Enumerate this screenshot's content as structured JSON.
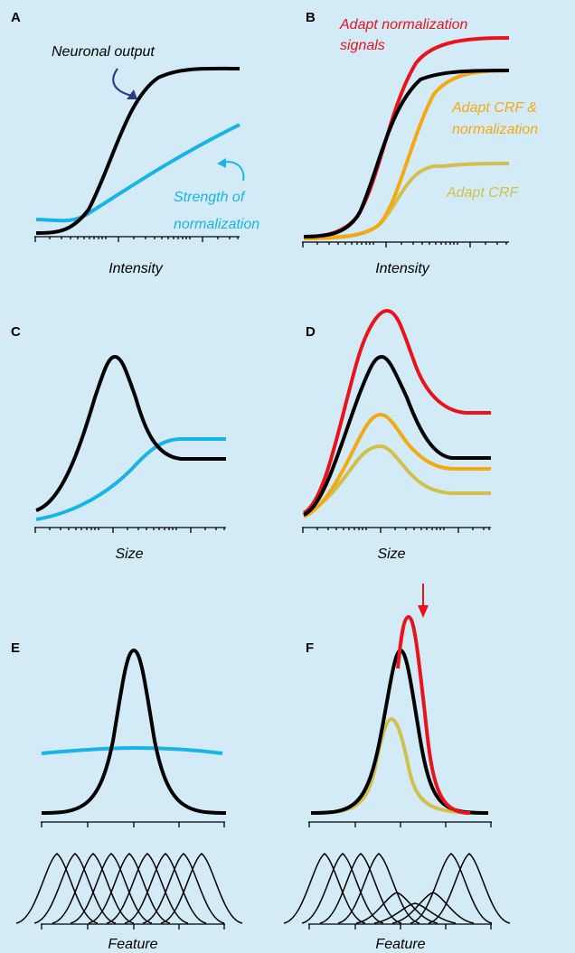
{
  "colors": {
    "background": "#d3ebf7",
    "neuronal_output": "#000000",
    "normalization": "#18b4e8",
    "adapt_normalization": "#e8141c",
    "adapt_crf_and_normalization": "#f3a913",
    "adapt_crf": "#d2c04a"
  },
  "panels": {
    "A": {
      "letter": "A",
      "xlabel": "Intensity",
      "annot_output": "Neuronal output",
      "annot_norm_1": "Strength of",
      "annot_norm_2": "normalization"
    },
    "B": {
      "letter": "B",
      "xlabel": "Intensity",
      "annot_adapt_norm_1": "Adapt normalization",
      "annot_adapt_norm_2": "signals",
      "annot_adapt_crf_norm_1": "Adapt CRF &",
      "annot_adapt_crf_norm_2": "normalization",
      "annot_adapt_crf": "Adapt CRF"
    },
    "C": {
      "letter": "C",
      "xlabel": "Size"
    },
    "D": {
      "letter": "D",
      "xlabel": "Size"
    },
    "E": {
      "letter": "E",
      "xlabel": "Feature"
    },
    "F": {
      "letter": "F",
      "xlabel": "Feature"
    }
  }
}
